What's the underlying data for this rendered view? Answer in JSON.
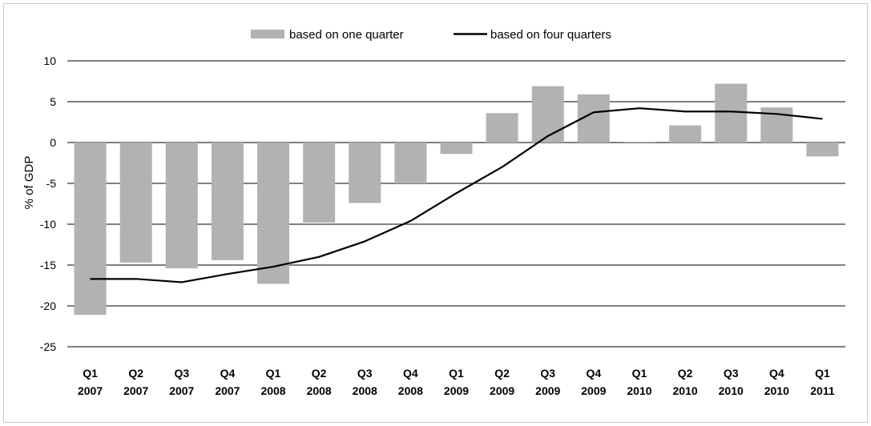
{
  "chart_data": {
    "type": "bar",
    "title": "",
    "xlabel": "",
    "ylabel": "% of GDP",
    "ylim": [
      -25,
      10
    ],
    "yticks": [
      10,
      5,
      0,
      -5,
      -10,
      -15,
      -20,
      -25
    ],
    "grid": "horizontal",
    "legend_position": "top-center",
    "categories": [
      [
        "Q1",
        "2007"
      ],
      [
        "Q2",
        "2007"
      ],
      [
        "Q3",
        "2007"
      ],
      [
        "Q4",
        "2007"
      ],
      [
        "Q1",
        "2008"
      ],
      [
        "Q2",
        "2008"
      ],
      [
        "Q3",
        "2008"
      ],
      [
        "Q4",
        "2008"
      ],
      [
        "Q1",
        "2009"
      ],
      [
        "Q2",
        "2009"
      ],
      [
        "Q3",
        "2009"
      ],
      [
        "Q4",
        "2009"
      ],
      [
        "Q1",
        "2010"
      ],
      [
        "Q2",
        "2010"
      ],
      [
        "Q3",
        "2010"
      ],
      [
        "Q4",
        "2010"
      ],
      [
        "Q1",
        "2011"
      ]
    ],
    "series": [
      {
        "name": "based on one quarter",
        "type": "bar",
        "color": "#b2b2b2",
        "values": [
          -21.1,
          -14.7,
          -15.4,
          -14.4,
          -17.3,
          -9.8,
          -7.4,
          -5.0,
          -1.4,
          3.6,
          6.9,
          5.9,
          0.1,
          2.1,
          7.2,
          4.3,
          -1.7
        ]
      },
      {
        "name": "based on four quarters",
        "type": "line",
        "color": "#000000",
        "values": [
          -16.7,
          -16.7,
          -17.1,
          -16.1,
          -15.2,
          -14.0,
          -12.1,
          -9.6,
          -6.2,
          -3.0,
          0.8,
          3.7,
          4.2,
          3.8,
          3.8,
          3.5,
          2.9
        ]
      }
    ]
  }
}
